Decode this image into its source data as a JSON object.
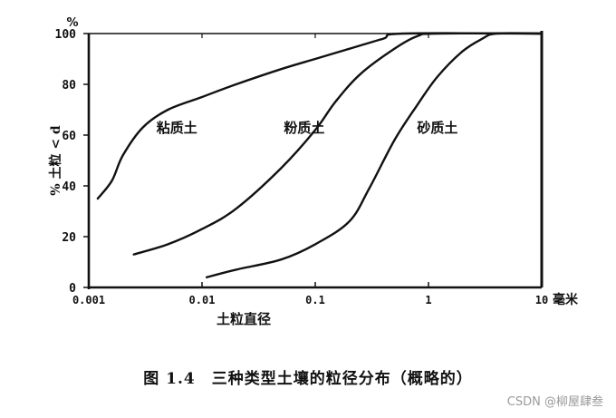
{
  "chart_data": {
    "type": "line",
    "title": "",
    "xlabel": "土粒直径",
    "ylabel": "% 土粒 < d",
    "y_unit": "%",
    "x_unit": "毫米",
    "x_scale": "log",
    "xlim": [
      0.001,
      10
    ],
    "ylim": [
      0,
      100
    ],
    "x_tick_labels": [
      "0.001",
      "0.01",
      "0.1",
      "1",
      "10"
    ],
    "x_tick_values": [
      0.001,
      0.01,
      0.1,
      1,
      10
    ],
    "y_ticks": [
      0,
      20,
      40,
      60,
      80,
      100
    ],
    "grid": false,
    "legend": "none (series labelled inline)",
    "line_color": "#111111",
    "series": [
      {
        "name": "粘质土",
        "label_at": {
          "x": 0.006,
          "y": 61
        },
        "points": [
          [
            0.0012,
            35
          ],
          [
            0.0016,
            42
          ],
          [
            0.002,
            52
          ],
          [
            0.003,
            63
          ],
          [
            0.005,
            70
          ],
          [
            0.01,
            75
          ],
          [
            0.02,
            80
          ],
          [
            0.05,
            86
          ],
          [
            0.1,
            90
          ],
          [
            0.2,
            94
          ],
          [
            0.4,
            98
          ],
          [
            0.6,
            100
          ],
          [
            10,
            100
          ]
        ]
      },
      {
        "name": "粉质土",
        "label_at": {
          "x": 0.08,
          "y": 61
        },
        "points": [
          [
            0.0025,
            13
          ],
          [
            0.005,
            17
          ],
          [
            0.01,
            23
          ],
          [
            0.02,
            31
          ],
          [
            0.05,
            47
          ],
          [
            0.1,
            62
          ],
          [
            0.15,
            73
          ],
          [
            0.25,
            84
          ],
          [
            0.5,
            94
          ],
          [
            0.8,
            99
          ],
          [
            1.2,
            100
          ],
          [
            10,
            100
          ]
        ]
      },
      {
        "name": "砂质土",
        "label_at": {
          "x": 1.2,
          "y": 61
        },
        "points": [
          [
            0.011,
            4
          ],
          [
            0.02,
            7
          ],
          [
            0.05,
            11
          ],
          [
            0.1,
            17
          ],
          [
            0.2,
            26
          ],
          [
            0.3,
            39
          ],
          [
            0.5,
            58
          ],
          [
            0.8,
            72
          ],
          [
            1.2,
            83
          ],
          [
            2,
            93
          ],
          [
            3,
            98
          ],
          [
            4,
            100
          ],
          [
            10,
            100
          ]
        ]
      }
    ]
  },
  "caption": "图 1.4　三种类型土壤的粒径分布（概略的）",
  "watermark": "CSDN @柳屋肆叁"
}
